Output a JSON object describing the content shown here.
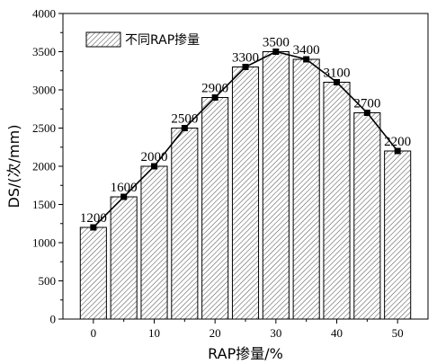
{
  "chart_data": {
    "type": "bar",
    "overlay": "line",
    "categories": [
      0,
      5,
      10,
      15,
      20,
      25,
      30,
      35,
      40,
      45,
      50
    ],
    "values": [
      1200,
      1600,
      2000,
      2500,
      2900,
      3300,
      3500,
      3400,
      3100,
      2700,
      2200
    ],
    "data_labels": [
      "1200",
      "1600",
      "2000",
      "2500",
      "2900",
      "3300",
      "3500",
      "3400",
      "3100",
      "2700",
      "2200"
    ],
    "series": [
      {
        "name": "不同RAP掺量",
        "values": [
          1200,
          1600,
          2000,
          2500,
          2900,
          3300,
          3500,
          3400,
          3100,
          2700,
          2200
        ]
      }
    ],
    "xlabel": "RAP掺量/%",
    "ylabel": "DS/(次/mm)",
    "xlim": [
      -5,
      55
    ],
    "ylim": [
      0,
      4000
    ],
    "x_ticks": [
      "0",
      "10",
      "20",
      "30",
      "40",
      "50"
    ],
    "y_ticks": [
      "0",
      "500",
      "1000",
      "1500",
      "2000",
      "2500",
      "3000",
      "3500",
      "4000"
    ],
    "legend": {
      "label": "不同RAP掺量",
      "position": "top-left"
    },
    "bar_fill": "diagonal-hatch",
    "marker": "square",
    "colors": {
      "line": "#000000",
      "bar_edge": "#000000",
      "hatch": "#555555",
      "bar_bg": "#ffffff"
    },
    "grid": false
  }
}
